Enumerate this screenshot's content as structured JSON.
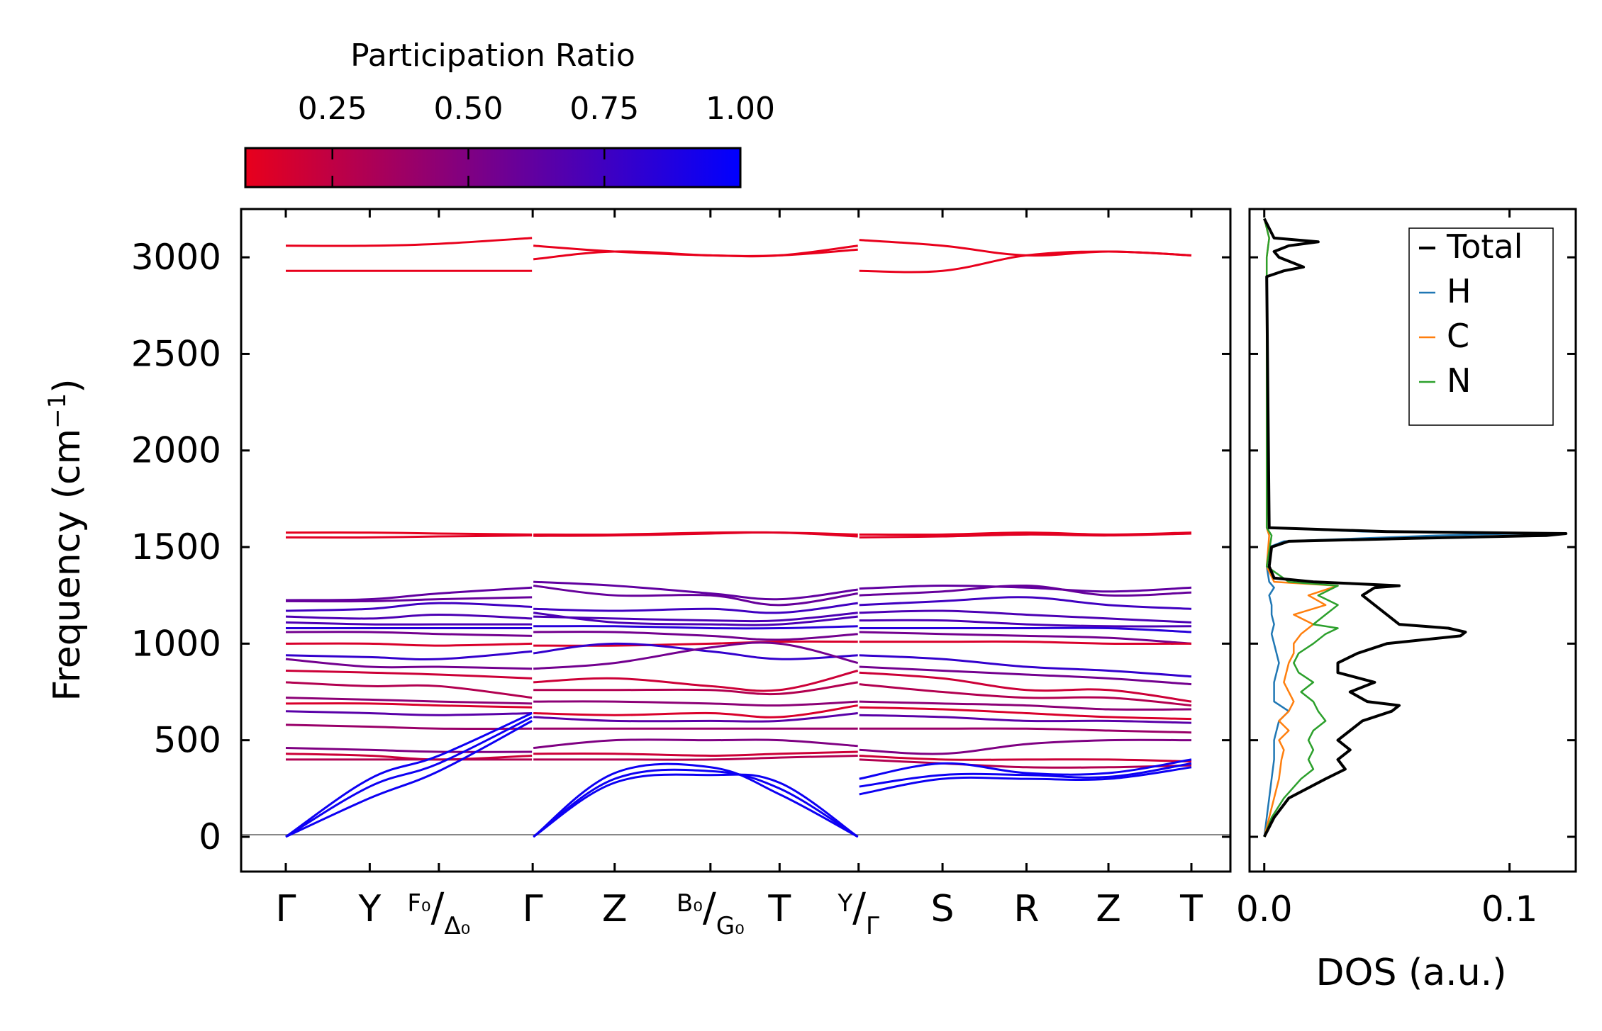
{
  "chart_data": [
    {
      "type": "band_structure",
      "ylabel": "Frequency (cm⁻¹)",
      "ylabel_main": "Frequency (cm",
      "ylabel_sup": "−1",
      "ylabel_close": ")",
      "ylim": [
        -180,
        3250
      ],
      "yticks": [
        0,
        500,
        1000,
        1500,
        2000,
        2500,
        3000
      ],
      "yticklabels": [
        "0",
        "500",
        "1000",
        "1500",
        "2000",
        "2500",
        "3000"
      ],
      "kpath": [
        {
          "pos": 0.0,
          "label": "Γ"
        },
        {
          "pos": 0.085,
          "label": "Y"
        },
        {
          "pos": 0.155,
          "label": "F₀/Δ₀",
          "sup": "F₀",
          "slash": "/",
          "sub": "Δ₀"
        },
        {
          "pos": 0.25,
          "label": "Γ",
          "break": true
        },
        {
          "pos": 0.333,
          "label": "Z"
        },
        {
          "pos": 0.43,
          "label": "B₀/G₀",
          "sup": "B₀",
          "slash": "/",
          "sub": "G₀"
        },
        {
          "pos": 0.5,
          "label": "T"
        },
        {
          "pos": 0.58,
          "label": "Y/Γ",
          "sup": "Y",
          "slash": "/",
          "sub": "Γ",
          "break": true
        },
        {
          "pos": 0.665,
          "label": "S"
        },
        {
          "pos": 0.75,
          "label": "R"
        },
        {
          "pos": 0.833,
          "label": "Z"
        },
        {
          "pos": 0.917,
          "label": "T"
        }
      ],
      "x_end": 0.917,
      "bands": [
        {
          "y": [
            3060,
            3060,
            3070,
            3100,
            3060,
            3030,
            3010,
            3010,
            3060,
            3090,
            3060,
            3010,
            3030,
            3010
          ],
          "pr": 0.06
        },
        {
          "y": [
            2930,
            2930,
            2930,
            2930,
            2990,
            3030,
            3010,
            3010,
            3040,
            2930,
            2930,
            3010,
            3030,
            3010
          ],
          "pr": 0.06
        },
        {
          "y": [
            1575,
            1575,
            1570,
            1565,
            1565,
            1565,
            1575,
            1575,
            1565,
            1565,
            1565,
            1575,
            1565,
            1575
          ],
          "pr": 0.1
        },
        {
          "y": [
            1550,
            1550,
            1555,
            1560,
            1558,
            1560,
            1570,
            1575,
            1555,
            1550,
            1555,
            1565,
            1560,
            1570
          ],
          "pr": 0.12
        },
        {
          "y": [
            1225,
            1230,
            1260,
            1290,
            1320,
            1300,
            1260,
            1230,
            1280,
            1285,
            1300,
            1290,
            1270,
            1290
          ],
          "pr": 0.62
        },
        {
          "y": [
            1220,
            1220,
            1230,
            1240,
            1300,
            1250,
            1250,
            1200,
            1260,
            1250,
            1270,
            1300,
            1250,
            1265
          ],
          "pr": 0.6
        },
        {
          "y": [
            1170,
            1180,
            1210,
            1190,
            1180,
            1170,
            1180,
            1160,
            1210,
            1200,
            1220,
            1240,
            1200,
            1180
          ],
          "pr": 0.75
        },
        {
          "y": [
            1140,
            1130,
            1150,
            1130,
            1140,
            1130,
            1120,
            1120,
            1160,
            1160,
            1170,
            1150,
            1130,
            1110
          ],
          "pr": 0.7
        },
        {
          "y": [
            1110,
            1100,
            1100,
            1100,
            1160,
            1110,
            1100,
            1100,
            1140,
            1120,
            1120,
            1100,
            1090,
            1090
          ],
          "pr": 0.7
        },
        {
          "y": [
            1080,
            1080,
            1080,
            1080,
            1090,
            1090,
            1080,
            1080,
            1090,
            1080,
            1080,
            1080,
            1080,
            1060
          ],
          "pr": 0.85
        },
        {
          "y": [
            1060,
            1060,
            1050,
            1040,
            1060,
            1060,
            1040,
            1020,
            1050,
            1060,
            1050,
            1040,
            1030,
            1000
          ],
          "pr": 0.55
        },
        {
          "y": [
            1000,
            1000,
            990,
            1000,
            990,
            990,
            1000,
            1010,
            1010,
            1010,
            1010,
            1010,
            1000,
            1000
          ],
          "pr": 0.15
        },
        {
          "y": [
            940,
            930,
            920,
            960,
            950,
            1000,
            960,
            920,
            940,
            940,
            920,
            880,
            860,
            830
          ],
          "pr": 0.8
        },
        {
          "y": [
            920,
            880,
            880,
            870,
            870,
            900,
            980,
            1000,
            900,
            880,
            860,
            840,
            820,
            790
          ],
          "pr": 0.55
        },
        {
          "y": [
            860,
            850,
            840,
            820,
            800,
            820,
            780,
            760,
            860,
            850,
            820,
            760,
            760,
            700
          ],
          "pr": 0.2
        },
        {
          "y": [
            800,
            780,
            780,
            720,
            760,
            760,
            760,
            740,
            800,
            790,
            750,
            720,
            720,
            680
          ],
          "pr": 0.3
        },
        {
          "y": [
            720,
            710,
            700,
            690,
            700,
            700,
            690,
            680,
            700,
            700,
            690,
            680,
            660,
            660
          ],
          "pr": 0.45
        },
        {
          "y": [
            690,
            690,
            680,
            670,
            640,
            630,
            640,
            620,
            680,
            670,
            660,
            640,
            620,
            610
          ],
          "pr": 0.15
        },
        {
          "y": [
            650,
            640,
            630,
            640,
            620,
            600,
            600,
            600,
            640,
            630,
            620,
            600,
            600,
            590
          ],
          "pr": 0.65
        },
        {
          "y": [
            580,
            570,
            560,
            560,
            560,
            560,
            560,
            560,
            560,
            560,
            560,
            560,
            550,
            540
          ],
          "pr": 0.4
        },
        {
          "y": [
            460,
            450,
            440,
            440,
            460,
            500,
            500,
            500,
            470,
            450,
            430,
            480,
            500,
            500
          ],
          "pr": 0.5
        },
        {
          "y": [
            430,
            420,
            400,
            420,
            430,
            430,
            420,
            430,
            440,
            420,
            400,
            400,
            400,
            390
          ],
          "pr": 0.2
        },
        {
          "y": [
            400,
            400,
            400,
            400,
            400,
            400,
            400,
            410,
            420,
            400,
            380,
            360,
            360,
            370
          ],
          "pr": 0.3
        },
        {
          "y": [
            0,
            300,
            420,
            640,
            0,
            330,
            360,
            220,
            0,
            300,
            380,
            330,
            330,
            400
          ],
          "pr": 0.95
        },
        {
          "y": [
            0,
            260,
            380,
            620,
            0,
            300,
            340,
            250,
            0,
            260,
            320,
            320,
            310,
            380
          ],
          "pr": 0.95
        },
        {
          "y": [
            0,
            200,
            340,
            600,
            0,
            280,
            320,
            280,
            0,
            220,
            300,
            300,
            300,
            360
          ],
          "pr": 0.95
        }
      ],
      "colorbar": {
        "label": "Participation Ratio",
        "ticks": [
          0.25,
          0.5,
          0.75,
          1.0
        ],
        "ticklabels": [
          "0.25",
          "0.50",
          "0.75",
          "1.00"
        ],
        "range": [
          0.09,
          1.0
        ],
        "colors": [
          "#e8001c",
          "#0000ff"
        ]
      }
    },
    {
      "type": "line",
      "orientation": "horizontal",
      "xlabel": "DOS (a.u.)",
      "xlim": [
        -0.006,
        0.127
      ],
      "xticks": [
        0.0,
        0.1
      ],
      "xticklabels": [
        "0.0",
        "0.1"
      ],
      "ylim": [
        -180,
        3250
      ],
      "legend_position": "top-right",
      "series": [
        {
          "name": "Total",
          "color": "#000000",
          "freq": [
            0,
            100,
            200,
            300,
            350,
            400,
            450,
            500,
            550,
            600,
            650,
            680,
            700,
            750,
            800,
            850,
            900,
            950,
            1000,
            1040,
            1060,
            1080,
            1100,
            1150,
            1200,
            1250,
            1290,
            1300,
            1320,
            1340,
            1400,
            1500,
            1530,
            1545,
            1560,
            1570,
            1580,
            1600,
            2900,
            2930,
            2950,
            3000,
            3030,
            3060,
            3080,
            3100,
            3200
          ],
          "dos": [
            0,
            0.004,
            0.01,
            0.025,
            0.033,
            0.03,
            0.035,
            0.03,
            0.035,
            0.04,
            0.052,
            0.055,
            0.042,
            0.035,
            0.045,
            0.03,
            0.03,
            0.038,
            0.05,
            0.08,
            0.082,
            0.075,
            0.055,
            0.05,
            0.045,
            0.04,
            0.045,
            0.055,
            0.02,
            0.004,
            0.002,
            0.003,
            0.01,
            0.06,
            0.115,
            0.123,
            0.05,
            0.002,
            0.001,
            0.008,
            0.016,
            0.006,
            0.004,
            0.01,
            0.022,
            0.004,
            0
          ]
        },
        {
          "name": "H",
          "color": "#1f77b4",
          "freq": [
            0,
            100,
            200,
            300,
            400,
            500,
            600,
            650,
            700,
            800,
            900,
            1000,
            1050,
            1100,
            1150,
            1200,
            1250,
            1290,
            1320,
            1400,
            1500,
            1530,
            1560,
            1570,
            1580,
            1600,
            2900,
            2930,
            2950,
            3000,
            3030,
            3060,
            3080,
            3100,
            3200
          ],
          "dos": [
            0,
            0.001,
            0.002,
            0.003,
            0.004,
            0.004,
            0.006,
            0.01,
            0.004,
            0.004,
            0.006,
            0.004,
            0.003,
            0.004,
            0.003,
            0.003,
            0.002,
            0.004,
            0.002,
            0.001,
            0.002,
            0.008,
            0.07,
            0.105,
            0.04,
            0.002,
            0.001,
            0.008,
            0.016,
            0.006,
            0.004,
            0.01,
            0.022,
            0.004,
            0
          ]
        },
        {
          "name": "C",
          "color": "#ff7f0e",
          "freq": [
            0,
            100,
            200,
            300,
            400,
            450,
            500,
            550,
            600,
            650,
            700,
            800,
            900,
            950,
            1000,
            1050,
            1100,
            1150,
            1200,
            1250,
            1300,
            1320,
            1400,
            1560,
            1600,
            3000,
            3100,
            3200
          ],
          "dos": [
            0,
            0.002,
            0.004,
            0.006,
            0.007,
            0.008,
            0.006,
            0.01,
            0.006,
            0.01,
            0.012,
            0.008,
            0.01,
            0.012,
            0.012,
            0.015,
            0.02,
            0.012,
            0.025,
            0.018,
            0.03,
            0.004,
            0.001,
            0.002,
            0.001,
            0.001,
            0.002,
            0
          ]
        },
        {
          "name": "N",
          "color": "#2ca02c",
          "freq": [
            0,
            100,
            200,
            300,
            350,
            400,
            450,
            500,
            550,
            600,
            650,
            700,
            750,
            800,
            850,
            900,
            950,
            1000,
            1050,
            1080,
            1100,
            1150,
            1200,
            1250,
            1300,
            1320,
            1400,
            1560,
            1580,
            1600,
            3000,
            3100,
            3200
          ],
          "dos": [
            0,
            0.003,
            0.008,
            0.015,
            0.02,
            0.018,
            0.02,
            0.018,
            0.02,
            0.025,
            0.022,
            0.02,
            0.015,
            0.02,
            0.014,
            0.012,
            0.014,
            0.02,
            0.025,
            0.03,
            0.02,
            0.025,
            0.03,
            0.022,
            0.03,
            0.01,
            0.001,
            0.003,
            0.002,
            0.001,
            0.001,
            0.002,
            0
          ]
        }
      ]
    }
  ]
}
